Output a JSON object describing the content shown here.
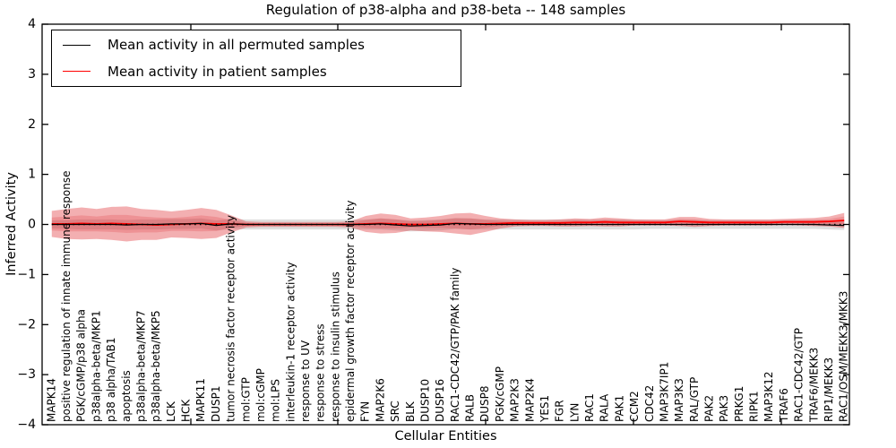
{
  "figure": {
    "title": "Regulation of p38-alpha and p38-beta -- 148 samples",
    "xlabel": "Cellular Entities",
    "ylabel": "Inferred Activity"
  },
  "legend": {
    "items": [
      {
        "label": "Mean activity in all permuted samples",
        "color": "#000000"
      },
      {
        "label": "Mean activity in patient samples",
        "color": "#ff0000"
      }
    ]
  },
  "chart_data": {
    "type": "line",
    "title": "Regulation of p38-alpha and p38-beta -- 148 samples",
    "xlabel": "Cellular Entities",
    "ylabel": "Inferred Activity",
    "ylim": [
      -4,
      4
    ],
    "yticks": [
      4,
      3,
      2,
      1,
      0,
      -1,
      -2,
      -3,
      -4
    ],
    "grid": false,
    "zero_line_style": "dotted",
    "legend_position": "upper left",
    "x_tick_label_rotation": 90,
    "categories": [
      "MAPK14",
      "positive regulation of innate immune response",
      "PGK/cGMP/p38 alpha",
      "p38alpha-beta/MKP1",
      "p38 alpha/TAB1",
      "apoptosis",
      "p38alpha-beta/MKP7",
      "p38alpha-beta/MKP5",
      "LCK",
      "HCK",
      "MAPK11",
      "DUSP1",
      "tumor necrosis factor receptor activity",
      "mol:GTP",
      "mol:cGMP",
      "mol:LPS",
      "interleukin-1 receptor activity",
      "response to UV",
      "response to stress",
      "response to insulin stimulus",
      "epidermal growth factor receptor activity",
      "FYN",
      "MAP2K6",
      "SRC",
      "BLK",
      "DUSP10",
      "DUSP16",
      "RAC1-CDC42/GTP/PAK family",
      "RALB",
      "DUSP8",
      "PGK/cGMP",
      "MAP2K3",
      "MAP2K4",
      "YES1",
      "FGR",
      "LYN",
      "RAC1",
      "RALA",
      "PAK1",
      "CCM2",
      "CDC42",
      "MAP3K7IP1",
      "MAP3K3",
      "RAL/GTP",
      "PAK2",
      "PAK3",
      "PRKG1",
      "RIPK1",
      "MAP3K12",
      "TRAF6",
      "RAC1-CDC42/GTP",
      "TRAF6/MEKK3",
      "RIP1/MEKK3",
      "RAC1/OSM/MEKK3/MKK3"
    ],
    "series": [
      {
        "name": "Mean activity in all permuted samples",
        "color": "#000000",
        "band_color": "rgba(0,0,0,0.13)",
        "values": [
          0.0,
          0.0,
          0.0,
          0.0,
          0.0,
          -0.01,
          0.0,
          0.0,
          0.01,
          0.01,
          0.02,
          -0.02,
          0.01,
          0.0,
          0.0,
          0.0,
          0.0,
          0.0,
          0.0,
          0.0,
          0.0,
          0.0,
          0.01,
          -0.01,
          -0.03,
          -0.02,
          -0.01,
          0.02,
          0.01,
          0.0,
          0.0,
          0.0,
          0.0,
          0.0,
          0.0,
          0.0,
          0.0,
          0.0,
          0.0,
          0.0,
          0.0,
          0.0,
          0.0,
          0.0,
          0.0,
          0.0,
          0.0,
          0.0,
          0.0,
          0.0,
          0.0,
          0.0,
          -0.01,
          -0.02
        ],
        "band_halfwidth": [
          0.08,
          0.09,
          0.1,
          0.1,
          0.1,
          0.1,
          0.1,
          0.1,
          0.1,
          0.1,
          0.1,
          0.1,
          0.1,
          0.1,
          0.1,
          0.1,
          0.1,
          0.1,
          0.1,
          0.1,
          0.1,
          0.1,
          0.11,
          0.11,
          0.11,
          0.11,
          0.11,
          0.11,
          0.11,
          0.1,
          0.1,
          0.1,
          0.1,
          0.1,
          0.1,
          0.1,
          0.1,
          0.1,
          0.1,
          0.1,
          0.09,
          0.09,
          0.09,
          0.09,
          0.09,
          0.09,
          0.09,
          0.09,
          0.09,
          0.09,
          0.09,
          0.09,
          0.09,
          0.09
        ]
      },
      {
        "name": "Mean activity in patient samples",
        "color": "#ff0000",
        "band_outer_color": "rgba(222,32,38,0.36)",
        "band_inner_color": "rgba(222,32,38,0.20)",
        "values": [
          0.01,
          0.01,
          0.02,
          0.01,
          0.02,
          0.01,
          0.0,
          -0.01,
          0.0,
          0.01,
          0.02,
          0.01,
          0.01,
          0.0,
          0.0,
          0.0,
          0.0,
          0.0,
          0.0,
          0.0,
          0.0,
          0.01,
          0.02,
          0.01,
          0.0,
          0.0,
          0.01,
          0.02,
          0.01,
          0.01,
          0.02,
          0.03,
          0.03,
          0.03,
          0.03,
          0.04,
          0.04,
          0.05,
          0.04,
          0.04,
          0.04,
          0.04,
          0.06,
          0.05,
          0.04,
          0.04,
          0.04,
          0.04,
          0.04,
          0.05,
          0.05,
          0.05,
          0.06,
          0.08
        ],
        "band_outer_halfwidth": [
          0.26,
          0.3,
          0.32,
          0.3,
          0.33,
          0.35,
          0.31,
          0.3,
          0.26,
          0.28,
          0.31,
          0.28,
          0.17,
          0.06,
          0.05,
          0.05,
          0.05,
          0.05,
          0.05,
          0.05,
          0.06,
          0.16,
          0.2,
          0.18,
          0.12,
          0.14,
          0.16,
          0.2,
          0.22,
          0.16,
          0.1,
          0.07,
          0.06,
          0.06,
          0.07,
          0.08,
          0.07,
          0.09,
          0.08,
          0.06,
          0.06,
          0.06,
          0.09,
          0.1,
          0.07,
          0.06,
          0.06,
          0.06,
          0.06,
          0.06,
          0.07,
          0.08,
          0.1,
          0.15
        ],
        "band_inner_halfwidth": [
          0.13,
          0.15,
          0.16,
          0.15,
          0.17,
          0.18,
          0.16,
          0.15,
          0.13,
          0.14,
          0.16,
          0.14,
          0.08,
          0.03,
          0.02,
          0.02,
          0.02,
          0.02,
          0.02,
          0.02,
          0.03,
          0.08,
          0.1,
          0.09,
          0.06,
          0.07,
          0.08,
          0.1,
          0.11,
          0.08,
          0.05,
          0.03,
          0.03,
          0.03,
          0.03,
          0.04,
          0.03,
          0.04,
          0.04,
          0.03,
          0.03,
          0.03,
          0.05,
          0.05,
          0.03,
          0.03,
          0.03,
          0.03,
          0.03,
          0.03,
          0.03,
          0.04,
          0.05,
          0.08
        ]
      }
    ]
  }
}
